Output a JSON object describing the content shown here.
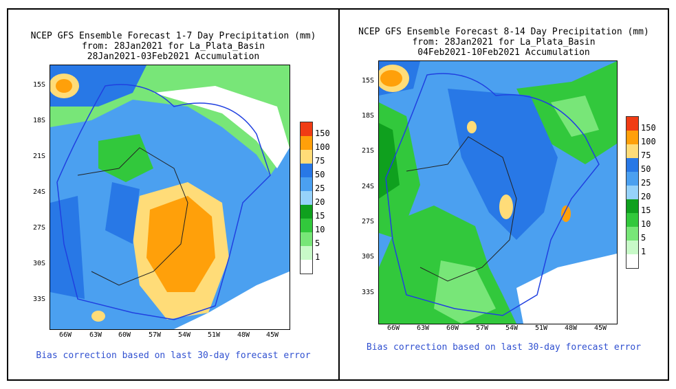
{
  "panels": [
    {
      "title_line1": "NCEP GFS Ensemble Forecast 1-7 Day Precipitation (mm)",
      "title_line2": "from: 28Jan2021   for La_Plata_Basin",
      "title_line3": "28Jan2021-03Feb2021 Accumulation",
      "footer": "Bias correction based on last 30-day forecast error"
    },
    {
      "title_line1": "NCEP GFS Ensemble Forecast 8-14 Day Precipitation (mm)",
      "title_line2": "from: 28Jan2021   for La_Plata_Basin",
      "title_line3": "04Feb2021-10Feb2021 Accumulation",
      "footer": "Bias correction based on last 30-day forecast error"
    }
  ],
  "lat_labels": [
    "15S",
    "18S",
    "21S",
    "24S",
    "27S",
    "30S",
    "33S"
  ],
  "lon_labels": [
    "66W",
    "63W",
    "60W",
    "57W",
    "54W",
    "51W",
    "48W",
    "45W"
  ],
  "legend": {
    "labels": [
      "150",
      "100",
      "75",
      "50",
      "25",
      "20",
      "15",
      "10",
      "5",
      "1"
    ],
    "colors": [
      "#f03c14",
      "#ffa00a",
      "#ffdc78",
      "#2878e6",
      "#4ba0f0",
      "#96d2fa",
      "#0fa01e",
      "#32c83c",
      "#78e678",
      "#c8fac8",
      "#ffffff"
    ]
  }
}
